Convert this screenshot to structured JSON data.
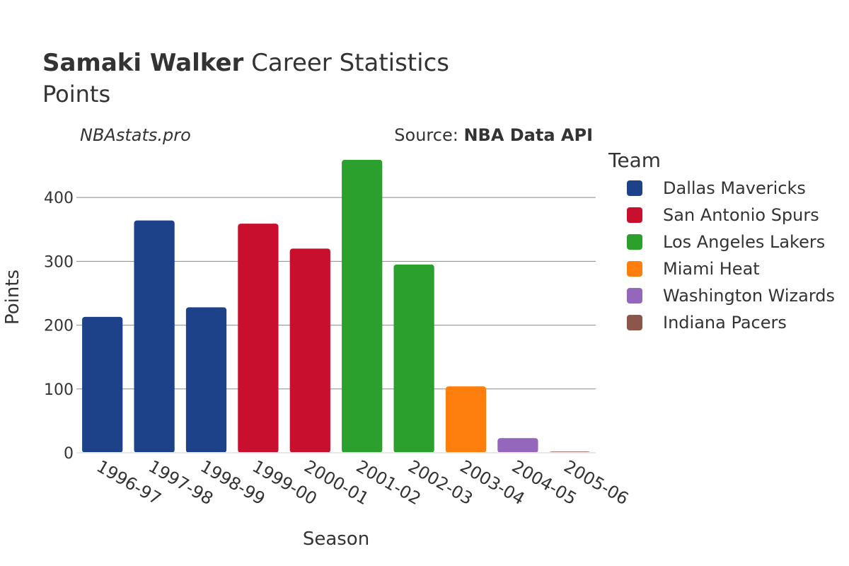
{
  "title": {
    "bold": "Samaki Walker",
    "rest": " Career Statistics"
  },
  "subtitle": "Points",
  "watermark": "NBAstats.pro",
  "source": {
    "prefix": "Source: ",
    "name": "NBA Data API"
  },
  "legend_title": "Team",
  "chart_data": {
    "type": "bar",
    "title": "Samaki Walker Career Statistics",
    "subtitle": "Points",
    "xlabel": "Season",
    "ylabel": "Points",
    "ylim": [
      0,
      470
    ],
    "yticks": [
      0,
      100,
      200,
      300,
      400
    ],
    "grid": true,
    "legend_position": "right",
    "categories": [
      "1996-97",
      "1997-98",
      "1998-99",
      "1999-00",
      "2000-01",
      "2001-02",
      "2002-03",
      "2003-04",
      "2004-05",
      "2005-06"
    ],
    "values": [
      213,
      364,
      228,
      359,
      320,
      459,
      295,
      104,
      23,
      2
    ],
    "teams": [
      "Dallas Mavericks",
      "Dallas Mavericks",
      "Dallas Mavericks",
      "San Antonio Spurs",
      "San Antonio Spurs",
      "Los Angeles Lakers",
      "Los Angeles Lakers",
      "Miami Heat",
      "Washington Wizards",
      "Indiana Pacers"
    ],
    "series": [
      {
        "name": "Dallas Mavericks",
        "color": "#1d428a"
      },
      {
        "name": "San Antonio Spurs",
        "color": "#c8102e"
      },
      {
        "name": "Los Angeles Lakers",
        "color": "#2ca02c"
      },
      {
        "name": "Miami Heat",
        "color": "#ff7f0e"
      },
      {
        "name": "Washington Wizards",
        "color": "#9467bd"
      },
      {
        "name": "Indiana Pacers",
        "color": "#8c564b"
      }
    ]
  }
}
